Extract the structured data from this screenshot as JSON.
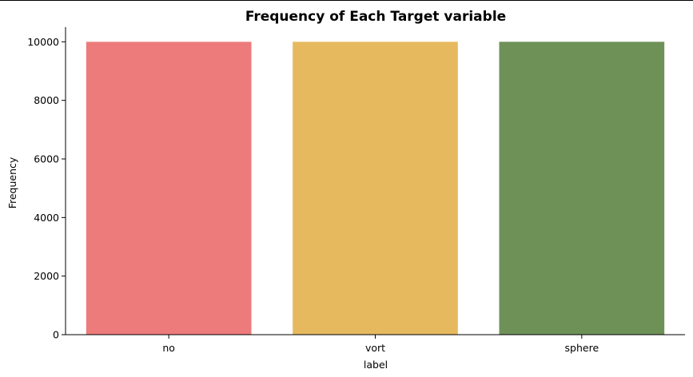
{
  "chart_data": {
    "type": "bar",
    "title": "Frequency of Each Target variable",
    "xlabel": "label",
    "ylabel": "Frequency",
    "categories": [
      "no",
      "vort",
      "sphere"
    ],
    "values": [
      10000,
      10000,
      10000
    ],
    "colors": [
      "#ee7b7b",
      "#e7b95f",
      "#6e9158"
    ],
    "ylim": [
      0,
      10500
    ],
    "yticks": [
      0,
      2000,
      4000,
      6000,
      8000,
      10000
    ],
    "grid": false,
    "legend": "none",
    "spines": [
      "left",
      "bottom"
    ]
  }
}
